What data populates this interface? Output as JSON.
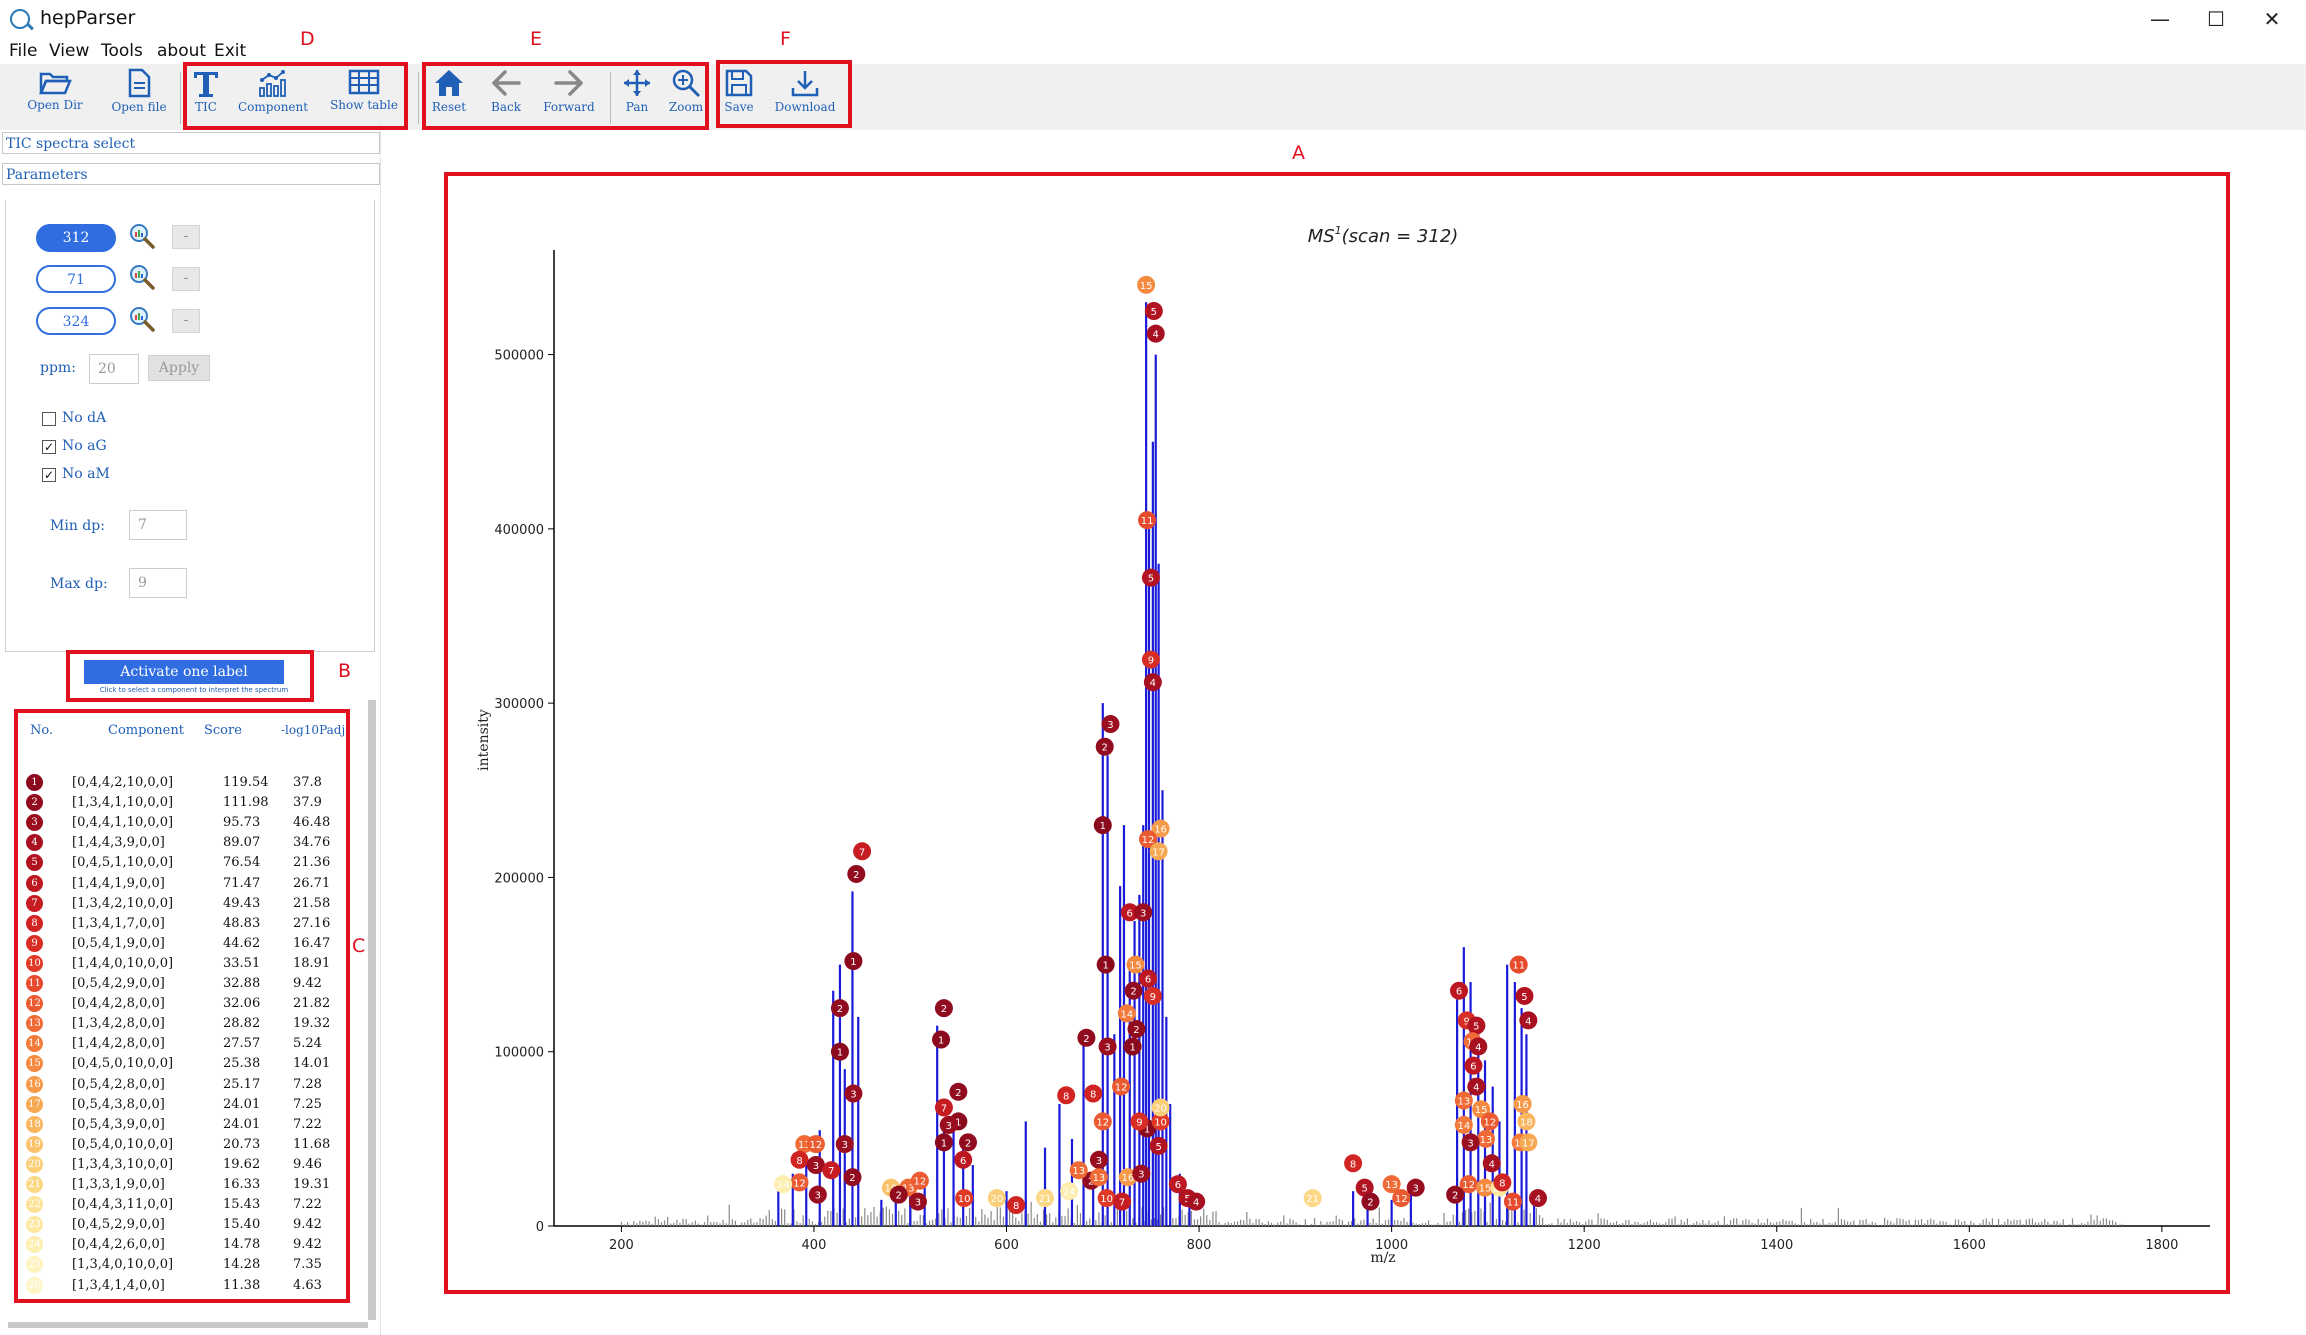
{
  "window": {
    "title": "hepParser",
    "controls": [
      "—",
      "☐",
      "✕"
    ]
  },
  "menu": [
    "File",
    "View",
    "Tools",
    "about",
    "Exit"
  ],
  "toolbar": {
    "open_dir": "Open Dir",
    "open_file": "Open file",
    "tic": "TIC",
    "component": "Component",
    "show_table": "Show table",
    "reset": "Reset",
    "back": "Back",
    "forward": "Forward",
    "pan": "Pan",
    "zoom": "Zoom",
    "save": "Save",
    "download": "Download"
  },
  "annotations": {
    "A": "A",
    "B": "B",
    "C": "C",
    "D": "D",
    "E": "E",
    "F": "F",
    "color": "#e0101f"
  },
  "left": {
    "tic_select": "TIC spectra select",
    "parameters": "Parameters",
    "scans": [
      {
        "value": "312",
        "active": true,
        "remove": "-"
      },
      {
        "value": "71",
        "active": false,
        "remove": "-"
      },
      {
        "value": "324",
        "active": false,
        "remove": "-"
      }
    ],
    "ppm_label": "ppm:",
    "ppm_value": "20",
    "apply": "Apply",
    "checks": [
      {
        "label": "No dA",
        "checked": false
      },
      {
        "label": "No aG",
        "checked": true
      },
      {
        "label": "No aM",
        "checked": true
      }
    ],
    "min_dp_label": "Min dp:",
    "min_dp_value": "7",
    "max_dp_label": "Max dp:",
    "max_dp_value": "9",
    "activate_button": "Activate one label",
    "activate_note": "Click to select a component to interpret the spectrum"
  },
  "table": {
    "headers": [
      "No.",
      "Component",
      "Score",
      "-log10Padj"
    ],
    "rows": [
      {
        "no": "1",
        "component": "[0,4,4,2,10,0,0]",
        "score": "119.54",
        "padj": "37.8",
        "color": "#8b0a1e"
      },
      {
        "no": "2",
        "component": "[1,3,4,1,10,0,0]",
        "score": "111.98",
        "padj": "37.9",
        "color": "#920c1f"
      },
      {
        "no": "3",
        "component": "[0,4,4,1,10,0,0]",
        "score": "95.73",
        "padj": "46.48",
        "color": "#9a0e20"
      },
      {
        "no": "4",
        "component": "[1,4,4,3,9,0,0]",
        "score": "89.07",
        "padj": "34.76",
        "color": "#a61020"
      },
      {
        "no": "5",
        "component": "[0,4,5,1,10,0,0]",
        "score": "76.54",
        "padj": "21.36",
        "color": "#b21321"
      },
      {
        "no": "6",
        "component": "[1,4,4,1,9,0,0]",
        "score": "71.47",
        "padj": "26.71",
        "color": "#bd1722"
      },
      {
        "no": "7",
        "component": "[1,3,4,2,10,0,0]",
        "score": "49.43",
        "padj": "21.58",
        "color": "#c71c22"
      },
      {
        "no": "8",
        "component": "[1,3,4,1,7,0,0]",
        "score": "48.83",
        "padj": "27.16",
        "color": "#d02423"
      },
      {
        "no": "9",
        "component": "[0,5,4,1,9,0,0]",
        "score": "44.62",
        "padj": "16.47",
        "color": "#d82d25"
      },
      {
        "no": "10",
        "component": "[1,4,4,0,10,0,0]",
        "score": "33.51",
        "padj": "18.91",
        "color": "#e03a27"
      },
      {
        "no": "11",
        "component": "[0,5,4,2,9,0,0]",
        "score": "32.88",
        "padj": "9.42",
        "color": "#e6492b"
      },
      {
        "no": "12",
        "component": "[0,4,4,2,8,0,0]",
        "score": "32.06",
        "padj": "21.82",
        "color": "#eb5a30"
      },
      {
        "no": "13",
        "component": "[1,3,4,2,8,0,0]",
        "score": "28.82",
        "padj": "19.32",
        "color": "#ef6a35"
      },
      {
        "no": "14",
        "component": "[1,4,4,2,8,0,0]",
        "score": "27.57",
        "padj": "5.24",
        "color": "#f27a3a"
      },
      {
        "no": "15",
        "component": "[0,4,5,0,10,0,0]",
        "score": "25.38",
        "padj": "14.01",
        "color": "#f48a40"
      },
      {
        "no": "16",
        "component": "[0,5,4,2,8,0,0]",
        "score": "25.17",
        "padj": "7.28",
        "color": "#f59a48"
      },
      {
        "no": "17",
        "component": "[0,5,4,3,8,0,0]",
        "score": "24.01",
        "padj": "7.25",
        "color": "#f7a852"
      },
      {
        "no": "18",
        "component": "[0,5,4,3,9,0,0]",
        "score": "24.01",
        "padj": "7.22",
        "color": "#f9b65e"
      },
      {
        "no": "19",
        "component": "[0,5,4,0,10,0,0]",
        "score": "20.73",
        "padj": "11.68",
        "color": "#fac36b"
      },
      {
        "no": "20",
        "component": "[1,3,4,3,10,0,0]",
        "score": "19.62",
        "padj": "9.46",
        "color": "#fbce78"
      },
      {
        "no": "21",
        "component": "[1,3,3,1,9,0,0]",
        "score": "16.33",
        "padj": "19.31",
        "color": "#fcd886"
      },
      {
        "no": "22",
        "component": "[0,4,4,3,11,0,0]",
        "score": "15.43",
        "padj": "7.22",
        "color": "#fde194"
      },
      {
        "no": "23",
        "component": "[0,4,5,2,9,0,0]",
        "score": "15.40",
        "padj": "9.42",
        "color": "#fde8a2"
      },
      {
        "no": "24",
        "component": "[0,4,4,2,6,0,0]",
        "score": "14.78",
        "padj": "9.42",
        "color": "#feeeb0"
      },
      {
        "no": "25",
        "component": "[1,3,4,0,10,0,0]",
        "score": "14.28",
        "padj": "7.35",
        "color": "#fef2bd"
      },
      {
        "no": "26",
        "component": "[1,3,4,1,4,0,0]",
        "score": "11.38",
        "padj": "4.63",
        "color": "#fff5c8"
      }
    ]
  },
  "chart_data": {
    "type": "bar",
    "title": "MS1(scan = 312)",
    "title_main": "MS",
    "title_sup": "1",
    "title_rest": "(scan = 312)",
    "xlabel": "m/z",
    "ylabel": "intensity",
    "xlim": [
      130,
      1850
    ],
    "ylim": [
      0,
      560000
    ],
    "xticks": [
      "200",
      "400",
      "600",
      "800",
      "1000",
      "1200",
      "1400",
      "1600",
      "1800"
    ],
    "yticks": [
      "0",
      "100000",
      "200000",
      "300000",
      "400000",
      "500000"
    ],
    "series": [
      {
        "role": "annotated peaks",
        "color": "#1a1adb",
        "points": [
          [
            363,
            20000
          ],
          [
            378,
            30000
          ],
          [
            392,
            38000
          ],
          [
            406,
            55000
          ],
          [
            420,
            135000
          ],
          [
            427,
            150000
          ],
          [
            432,
            90000
          ],
          [
            440,
            192000
          ],
          [
            446,
            120000
          ],
          [
            470,
            15000
          ],
          [
            485,
            20000
          ],
          [
            500,
            25000
          ],
          [
            515,
            30000
          ],
          [
            528,
            115000
          ],
          [
            535,
            60000
          ],
          [
            545,
            55000
          ],
          [
            555,
            45000
          ],
          [
            565,
            35000
          ],
          [
            600,
            20000
          ],
          [
            620,
            60000
          ],
          [
            640,
            45000
          ],
          [
            655,
            70000
          ],
          [
            668,
            50000
          ],
          [
            680,
            108000
          ],
          [
            690,
            30000
          ],
          [
            700,
            300000
          ],
          [
            705,
            270000
          ],
          [
            712,
            110000
          ],
          [
            718,
            195000
          ],
          [
            722,
            230000
          ],
          [
            728,
            150000
          ],
          [
            733,
            175000
          ],
          [
            738,
            190000
          ],
          [
            742,
            230000
          ],
          [
            745,
            530000
          ],
          [
            748,
            400000
          ],
          [
            752,
            450000
          ],
          [
            755,
            500000
          ],
          [
            758,
            380000
          ],
          [
            762,
            250000
          ],
          [
            766,
            120000
          ],
          [
            770,
            70000
          ],
          [
            780,
            30000
          ],
          [
            790,
            20000
          ],
          [
            960,
            20000
          ],
          [
            975,
            15000
          ],
          [
            1000,
            15000
          ],
          [
            1020,
            20000
          ],
          [
            1068,
            130000
          ],
          [
            1075,
            160000
          ],
          [
            1082,
            140000
          ],
          [
            1090,
            110000
          ],
          [
            1097,
            95000
          ],
          [
            1105,
            80000
          ],
          [
            1112,
            60000
          ],
          [
            1120,
            150000
          ],
          [
            1128,
            140000
          ],
          [
            1135,
            125000
          ],
          [
            1140,
            110000
          ],
          [
            1148,
            20000
          ]
        ]
      }
    ],
    "noise_color": "#8a8a8a",
    "labels": [
      {
        "n": "15",
        "x": 745,
        "y": 540000
      },
      {
        "n": "5",
        "x": 753,
        "y": 525000
      },
      {
        "n": "4",
        "x": 755,
        "y": 512000
      },
      {
        "n": "11",
        "x": 746,
        "y": 405000
      },
      {
        "n": "5",
        "x": 750,
        "y": 372000
      },
      {
        "n": "9",
        "x": 750,
        "y": 325000
      },
      {
        "n": "4",
        "x": 752,
        "y": 312000
      },
      {
        "n": "3",
        "x": 708,
        "y": 288000
      },
      {
        "n": "2",
        "x": 702,
        "y": 275000
      },
      {
        "n": "1",
        "x": 700,
        "y": 230000
      },
      {
        "n": "16",
        "x": 760,
        "y": 228000
      },
      {
        "n": "12",
        "x": 747,
        "y": 222000
      },
      {
        "n": "17",
        "x": 758,
        "y": 215000
      },
      {
        "n": "6",
        "x": 728,
        "y": 180000
      },
      {
        "n": "3",
        "x": 742,
        "y": 180000
      },
      {
        "n": "1",
        "x": 703,
        "y": 150000
      },
      {
        "n": "15",
        "x": 734,
        "y": 150000
      },
      {
        "n": "6",
        "x": 747,
        "y": 142000
      },
      {
        "n": "2",
        "x": 732,
        "y": 135000
      },
      {
        "n": "9",
        "x": 752,
        "y": 132000
      },
      {
        "n": "14",
        "x": 725,
        "y": 122000
      },
      {
        "n": "2",
        "x": 735,
        "y": 113000
      },
      {
        "n": "1",
        "x": 731,
        "y": 103000
      },
      {
        "n": "3",
        "x": 705,
        "y": 103000
      },
      {
        "n": "2",
        "x": 683,
        "y": 108000
      },
      {
        "n": "12",
        "x": 719,
        "y": 80000
      },
      {
        "n": "8",
        "x": 662,
        "y": 75000
      },
      {
        "n": "8",
        "x": 690,
        "y": 76000
      },
      {
        "n": "7",
        "x": 450,
        "y": 215000
      },
      {
        "n": "2",
        "x": 444,
        "y": 202000
      },
      {
        "n": "1",
        "x": 441,
        "y": 152000
      },
      {
        "n": "2",
        "x": 427,
        "y": 125000
      },
      {
        "n": "1",
        "x": 427,
        "y": 100000
      },
      {
        "n": "3",
        "x": 441,
        "y": 76000
      },
      {
        "n": "2",
        "x": 535,
        "y": 125000
      },
      {
        "n": "1",
        "x": 532,
        "y": 107000
      },
      {
        "n": "2",
        "x": 550,
        "y": 77000
      },
      {
        "n": "7",
        "x": 535,
        "y": 68000
      },
      {
        "n": "1",
        "x": 550,
        "y": 60000
      },
      {
        "n": "3",
        "x": 540,
        "y": 58000
      },
      {
        "n": "2",
        "x": 560,
        "y": 48000
      },
      {
        "n": "1",
        "x": 535,
        "y": 48000
      },
      {
        "n": "6",
        "x": 555,
        "y": 38000
      },
      {
        "n": "3",
        "x": 432,
        "y": 47000
      },
      {
        "n": "13",
        "x": 390,
        "y": 47000
      },
      {
        "n": "12",
        "x": 402,
        "y": 47000
      },
      {
        "n": "8",
        "x": 385,
        "y": 38000
      },
      {
        "n": "3",
        "x": 402,
        "y": 35000
      },
      {
        "n": "7",
        "x": 418,
        "y": 32000
      },
      {
        "n": "12",
        "x": 385,
        "y": 25000
      },
      {
        "n": "24",
        "x": 368,
        "y": 24000
      },
      {
        "n": "3",
        "x": 404,
        "y": 18000
      },
      {
        "n": "2",
        "x": 440,
        "y": 28000
      },
      {
        "n": "19",
        "x": 480,
        "y": 22000
      },
      {
        "n": "13",
        "x": 498,
        "y": 22000
      },
      {
        "n": "12",
        "x": 510,
        "y": 26000
      },
      {
        "n": "2",
        "x": 488,
        "y": 18000
      },
      {
        "n": "3",
        "x": 508,
        "y": 14000
      },
      {
        "n": "10",
        "x": 556,
        "y": 16000
      },
      {
        "n": "20",
        "x": 590,
        "y": 16000
      },
      {
        "n": "8",
        "x": 610,
        "y": 12000
      },
      {
        "n": "21",
        "x": 640,
        "y": 16000
      },
      {
        "n": "24",
        "x": 665,
        "y": 20000
      },
      {
        "n": "2",
        "x": 688,
        "y": 26000
      },
      {
        "n": "13",
        "x": 675,
        "y": 32000
      },
      {
        "n": "3",
        "x": 696,
        "y": 38000
      },
      {
        "n": "10",
        "x": 704,
        "y": 16000
      },
      {
        "n": "7",
        "x": 720,
        "y": 14000
      },
      {
        "n": "12",
        "x": 700,
        "y": 60000
      },
      {
        "n": "13",
        "x": 696,
        "y": 28000
      },
      {
        "n": "16",
        "x": 726,
        "y": 28000
      },
      {
        "n": "3",
        "x": 740,
        "y": 30000
      },
      {
        "n": "5",
        "x": 758,
        "y": 46000
      },
      {
        "n": "1",
        "x": 746,
        "y": 56000
      },
      {
        "n": "10",
        "x": 760,
        "y": 60000
      },
      {
        "n": "20",
        "x": 760,
        "y": 68000
      },
      {
        "n": "9",
        "x": 738,
        "y": 60000
      },
      {
        "n": "6",
        "x": 778,
        "y": 24000
      },
      {
        "n": "5",
        "x": 788,
        "y": 16000
      },
      {
        "n": "4",
        "x": 797,
        "y": 14000
      },
      {
        "n": "21",
        "x": 918,
        "y": 16000
      },
      {
        "n": "8",
        "x": 960,
        "y": 36000
      },
      {
        "n": "5",
        "x": 972,
        "y": 22000
      },
      {
        "n": "2",
        "x": 978,
        "y": 14000
      },
      {
        "n": "13",
        "x": 1000,
        "y": 24000
      },
      {
        "n": "12",
        "x": 1010,
        "y": 16000
      },
      {
        "n": "3",
        "x": 1025,
        "y": 22000
      },
      {
        "n": "6",
        "x": 1070,
        "y": 135000
      },
      {
        "n": "11",
        "x": 1132,
        "y": 150000
      },
      {
        "n": "5",
        "x": 1138,
        "y": 132000
      },
      {
        "n": "4",
        "x": 1142,
        "y": 118000
      },
      {
        "n": "9",
        "x": 1078,
        "y": 118000
      },
      {
        "n": "5",
        "x": 1088,
        "y": 115000
      },
      {
        "n": "13",
        "x": 1084,
        "y": 106000
      },
      {
        "n": "4",
        "x": 1090,
        "y": 103000
      },
      {
        "n": "6",
        "x": 1085,
        "y": 92000
      },
      {
        "n": "4",
        "x": 1088,
        "y": 80000
      },
      {
        "n": "13",
        "x": 1075,
        "y": 72000
      },
      {
        "n": "15",
        "x": 1093,
        "y": 67000
      },
      {
        "n": "12",
        "x": 1102,
        "y": 60000
      },
      {
        "n": "16",
        "x": 1136,
        "y": 70000
      },
      {
        "n": "14",
        "x": 1075,
        "y": 58000
      },
      {
        "n": "18",
        "x": 1140,
        "y": 60000
      },
      {
        "n": "13",
        "x": 1098,
        "y": 50000
      },
      {
        "n": "3",
        "x": 1082,
        "y": 48000
      },
      {
        "n": "14",
        "x": 1134,
        "y": 48000
      },
      {
        "n": "17",
        "x": 1142,
        "y": 48000
      },
      {
        "n": "4",
        "x": 1104,
        "y": 36000
      },
      {
        "n": "12",
        "x": 1080,
        "y": 24000
      },
      {
        "n": "15",
        "x": 1097,
        "y": 22000
      },
      {
        "n": "23",
        "x": 1112,
        "y": 22000
      },
      {
        "n": "11",
        "x": 1126,
        "y": 14000
      },
      {
        "n": "4",
        "x": 1152,
        "y": 16000
      },
      {
        "n": "2",
        "x": 1066,
        "y": 18000
      },
      {
        "n": "8",
        "x": 1115,
        "y": 25000
      }
    ]
  }
}
